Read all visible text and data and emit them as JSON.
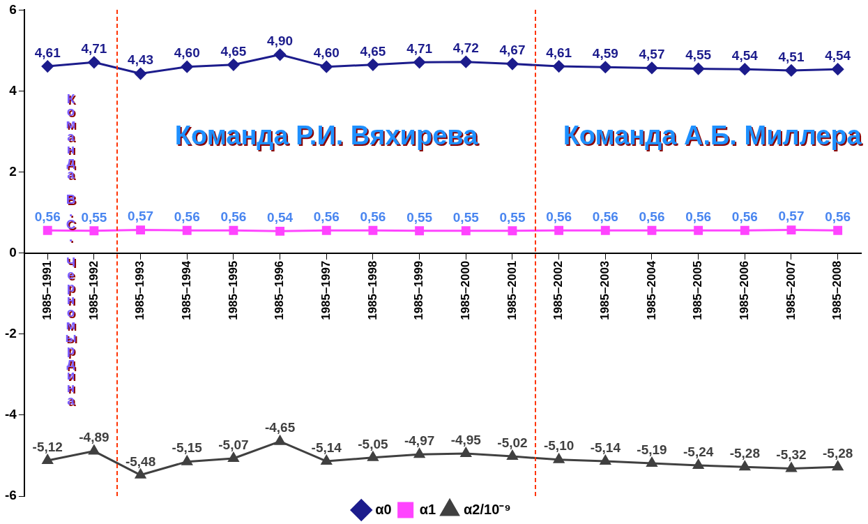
{
  "chart_data": {
    "type": "line",
    "categories": [
      "1985–1991",
      "1985–1992",
      "1985–1993",
      "1985–1994",
      "1985–1995",
      "1985–1996",
      "1985–1997",
      "1985–1998",
      "1985–1999",
      "1985–2000",
      "1985–2001",
      "1985–2002",
      "1985–2003",
      "1985–2004",
      "1985–2005",
      "1985–2006",
      "1985–2007",
      "1985–2008"
    ],
    "series": [
      {
        "name": "α0",
        "color": "#1c1c8c",
        "marker": "diamond",
        "values": [
          4.61,
          4.71,
          4.43,
          4.6,
          4.65,
          4.9,
          4.6,
          4.65,
          4.71,
          4.72,
          4.67,
          4.61,
          4.59,
          4.57,
          4.55,
          4.54,
          4.51,
          4.54
        ],
        "value_labels": [
          "4,61",
          "4,71",
          "4,43",
          "4,60",
          "4,65",
          "4,90",
          "4,60",
          "4,65",
          "4,71",
          "4,72",
          "4,67",
          "4,61",
          "4,59",
          "4,57",
          "4,55",
          "4,54",
          "4,51",
          "4,54"
        ]
      },
      {
        "name": "α1",
        "color": "#ff44ff",
        "marker": "square",
        "values": [
          0.56,
          0.55,
          0.57,
          0.56,
          0.56,
          0.54,
          0.56,
          0.56,
          0.55,
          0.55,
          0.55,
          0.56,
          0.56,
          0.56,
          0.56,
          0.56,
          0.57,
          0.56
        ],
        "value_labels": [
          "0,56",
          "0,55",
          "0,57",
          "0,56",
          "0,56",
          "0,54",
          "0,56",
          "0,56",
          "0,55",
          "0,55",
          "0,55",
          "0,56",
          "0,56",
          "0,56",
          "0,56",
          "0,56",
          "0,57",
          "0,56"
        ]
      },
      {
        "name": "α2/10⁻⁹",
        "color": "#404040",
        "marker": "triangle",
        "values": [
          -5.12,
          -4.89,
          -5.48,
          -5.15,
          -5.07,
          -4.65,
          -5.14,
          -5.05,
          -4.97,
          -4.95,
          -5.02,
          -5.1,
          -5.14,
          -5.19,
          -5.24,
          -5.28,
          -5.32,
          -5.28
        ],
        "value_labels": [
          "-5,12",
          "-4,89",
          "-5,48",
          "-5,15",
          "-5,07",
          "-4,65",
          "-5,14",
          "-5,05",
          "-4,97",
          "-4,95",
          "-5,02",
          "-5,10",
          "-5,14",
          "-5,19",
          "-5,24",
          "-5,28",
          "-5,32",
          "-5,28"
        ]
      }
    ],
    "ylim": [
      -6,
      6
    ],
    "yticks": [
      -6,
      -4,
      -2,
      0,
      2,
      4,
      6
    ],
    "grid": false,
    "legend": "bottom",
    "line_style": "solid",
    "annotations": [
      "Команда Р.И. Вяхирева",
      "Команда А.Б. Миллера",
      "Команда В.С. Черномырдина"
    ]
  }
}
